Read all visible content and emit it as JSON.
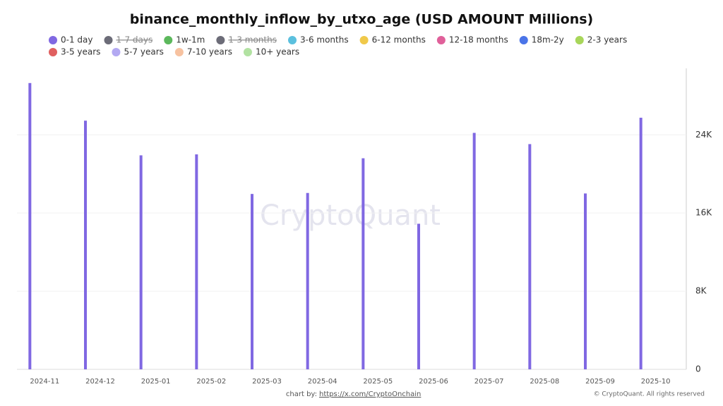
{
  "chart_data": {
    "type": "bar",
    "title": "binance_monthly_inflow_by_utxo_age (USD AMOUNT Millions)",
    "watermark": "CryptoQuant",
    "credit": "chart by:",
    "credit_link": "https://x.com/CryptoOnchain",
    "copyright": "© CryptoQuant. All rights reserved",
    "categories": [
      "2024-11",
      "2024-12",
      "2025-01",
      "2025-02",
      "2025-03",
      "2025-04",
      "2025-05",
      "2025-06",
      "2025-07",
      "2025-08",
      "2025-09",
      "2025-10"
    ],
    "series": [
      {
        "name": "0-1 day",
        "color": "#8068e2",
        "values": [
          29300,
          25450,
          21900,
          22000,
          17950,
          18050,
          21600,
          14900,
          24200,
          23050,
          18000,
          25750
        ]
      },
      {
        "name": "1-7 days",
        "color": "#6c6c78",
        "hidden": true,
        "values": [
          0,
          0,
          0,
          0,
          0,
          0,
          0,
          0,
          0,
          0,
          0,
          0
        ]
      },
      {
        "name": "1w-1m",
        "color": "#5cb85c",
        "values": [
          0,
          0,
          0,
          0,
          0,
          0,
          0,
          0,
          0,
          0,
          0,
          0
        ]
      },
      {
        "name": "1-3 months",
        "color": "#6c6c78",
        "hidden": true,
        "values": [
          0,
          0,
          0,
          0,
          0,
          0,
          0,
          0,
          0,
          0,
          0,
          0
        ]
      },
      {
        "name": "3-6 months",
        "color": "#5bc0de",
        "values": [
          0,
          0,
          0,
          0,
          0,
          0,
          0,
          0,
          0,
          0,
          0,
          0
        ]
      },
      {
        "name": "6-12 months",
        "color": "#f0c94a",
        "values": [
          0,
          0,
          0,
          0,
          0,
          0,
          0,
          0,
          0,
          0,
          0,
          0
        ]
      },
      {
        "name": "12-18 months",
        "color": "#e0609a",
        "values": [
          0,
          0,
          0,
          0,
          0,
          0,
          0,
          0,
          0,
          0,
          0,
          0
        ]
      },
      {
        "name": "18m-2y",
        "color": "#4a74e8",
        "values": [
          0,
          0,
          0,
          0,
          0,
          0,
          0,
          0,
          0,
          0,
          0,
          0
        ]
      },
      {
        "name": "2-3 years",
        "color": "#a8d65a",
        "values": [
          0,
          0,
          0,
          0,
          0,
          0,
          0,
          0,
          0,
          0,
          0,
          0
        ]
      },
      {
        "name": "3-5 years",
        "color": "#e06060",
        "values": [
          0,
          0,
          0,
          0,
          0,
          0,
          0,
          0,
          0,
          0,
          0,
          0
        ]
      },
      {
        "name": "5-7 years",
        "color": "#b3a9f2",
        "values": [
          0,
          0,
          0,
          0,
          0,
          0,
          0,
          0,
          0,
          0,
          0,
          0
        ]
      },
      {
        "name": "7-10 years",
        "color": "#f7c2a0",
        "values": [
          0,
          0,
          0,
          0,
          0,
          0,
          0,
          0,
          0,
          0,
          0,
          0
        ]
      },
      {
        "name": "10+ years",
        "color": "#b2e2a2",
        "values": [
          0,
          0,
          0,
          0,
          0,
          0,
          0,
          0,
          0,
          0,
          0,
          0
        ]
      }
    ],
    "ylim": [
      0,
      30800
    ],
    "yticks": [
      0,
      {
        "value": 8000,
        "label": "8K"
      },
      {
        "value": 16000,
        "label": "16K"
      },
      {
        "value": 24000,
        "label": "24K"
      }
    ],
    "grid": true
  }
}
